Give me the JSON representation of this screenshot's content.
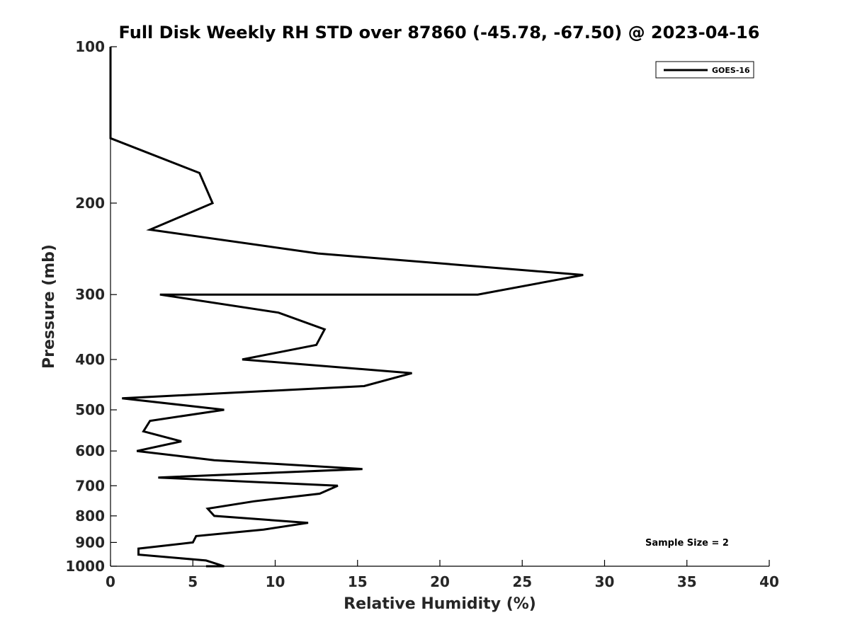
{
  "chart_data": {
    "type": "line",
    "title": "Full Disk Weekly RH STD over 87860 (-45.78, -67.50) @ 2023-04-16",
    "xlabel": "Relative Humidity (%)",
    "ylabel": "Pressure (mb)",
    "xlim": [
      0,
      40
    ],
    "ylim": [
      1000,
      100
    ],
    "yscale": "log",
    "grid": false,
    "legend_position": "top-right",
    "xticks": [
      0,
      5,
      10,
      15,
      20,
      25,
      30,
      35,
      40
    ],
    "yticks": [
      100,
      200,
      300,
      400,
      500,
      600,
      700,
      800,
      900,
      1000
    ],
    "series": [
      {
        "name": "GOES-16",
        "color": "#000000",
        "points": [
          {
            "p": 100,
            "v": 0.0
          },
          {
            "p": 125,
            "v": 0.0
          },
          {
            "p": 150,
            "v": 0.0
          },
          {
            "p": 175,
            "v": 5.4
          },
          {
            "p": 200,
            "v": 6.2
          },
          {
            "p": 225,
            "v": 2.4
          },
          {
            "p": 250,
            "v": 12.6
          },
          {
            "p": 275,
            "v": 28.7
          },
          {
            "p": 300,
            "v": 22.3
          },
          {
            "p": 300,
            "v": 3.0
          },
          {
            "p": 325,
            "v": 10.2
          },
          {
            "p": 350,
            "v": 13.0
          },
          {
            "p": 375,
            "v": 12.5
          },
          {
            "p": 400,
            "v": 8.0
          },
          {
            "p": 425,
            "v": 18.3
          },
          {
            "p": 450,
            "v": 15.4
          },
          {
            "p": 475,
            "v": 0.7
          },
          {
            "p": 500,
            "v": 6.9
          },
          {
            "p": 525,
            "v": 2.4
          },
          {
            "p": 550,
            "v": 2.0
          },
          {
            "p": 575,
            "v": 4.3
          },
          {
            "p": 600,
            "v": 1.6
          },
          {
            "p": 625,
            "v": 6.3
          },
          {
            "p": 650,
            "v": 15.3
          },
          {
            "p": 675,
            "v": 2.9
          },
          {
            "p": 700,
            "v": 13.8
          },
          {
            "p": 725,
            "v": 12.7
          },
          {
            "p": 750,
            "v": 8.7
          },
          {
            "p": 775,
            "v": 5.9
          },
          {
            "p": 800,
            "v": 6.3
          },
          {
            "p": 825,
            "v": 12.0
          },
          {
            "p": 850,
            "v": 9.3
          },
          {
            "p": 875,
            "v": 5.2
          },
          {
            "p": 900,
            "v": 5.0
          },
          {
            "p": 925,
            "v": 1.7
          },
          {
            "p": 950,
            "v": 1.7
          },
          {
            "p": 975,
            "v": 5.8
          },
          {
            "p": 1000,
            "v": 6.9
          },
          {
            "p": 1000,
            "v": 5.8
          }
        ]
      }
    ],
    "legend": [
      "GOES-16"
    ],
    "annotations": [
      "Sample Size = 2"
    ]
  }
}
